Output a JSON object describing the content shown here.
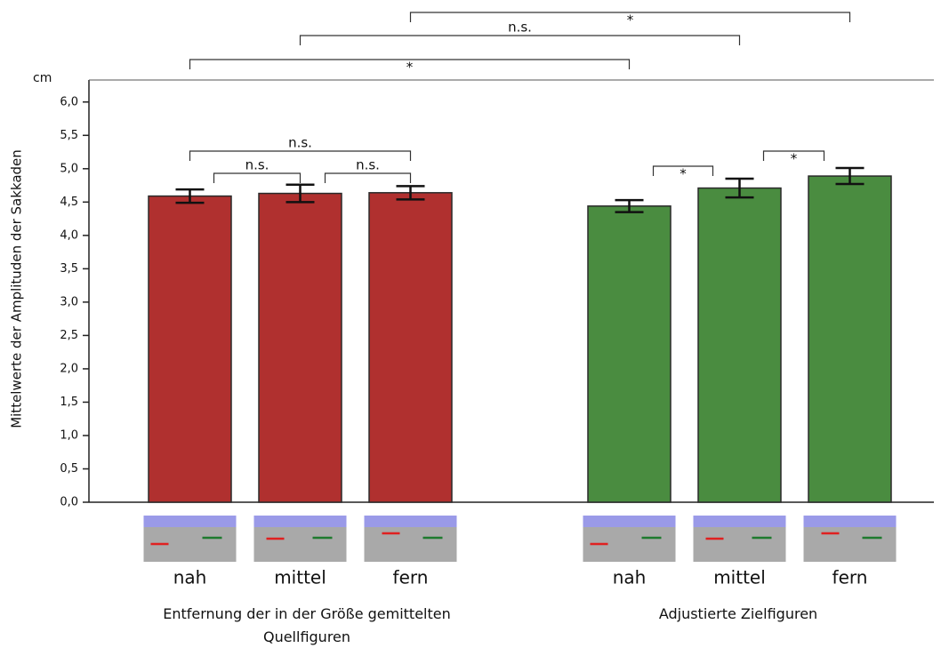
{
  "chart_data": {
    "type": "bar",
    "y_label": "Mittelwerte der Amplituden der Sakkaden",
    "y_unit": "cm",
    "ylim": [
      0,
      6.33
    ],
    "yticks": [
      {
        "value": 0,
        "label": "0,0"
      },
      {
        "value": 0.5,
        "label": "0,5"
      },
      {
        "value": 1,
        "label": "1,0"
      },
      {
        "value": 1.5,
        "label": "1,5"
      },
      {
        "value": 2,
        "label": "2,0"
      },
      {
        "value": 2.5,
        "label": "2,5"
      },
      {
        "value": 3,
        "label": "3,0"
      },
      {
        "value": 3.5,
        "label": "3,5"
      },
      {
        "value": 4,
        "label": "4,0"
      },
      {
        "value": 4.5,
        "label": "4,5"
      },
      {
        "value": 5,
        "label": "5,0"
      },
      {
        "value": 5.5,
        "label": "5,5"
      },
      {
        "value": 6,
        "label": "6,0"
      }
    ],
    "groups": [
      {
        "name": "Entfernung der in der Größe gemittelten Quellfiguren",
        "color": "#b0302f",
        "categories": [
          "nah",
          "mittel",
          "fern"
        ],
        "values": [
          4.59,
          4.63,
          4.64
        ],
        "errors": [
          0.1,
          0.13,
          0.1
        ]
      },
      {
        "name": "Adjustierte Zielfiguren",
        "color": "#4a8c40",
        "categories": [
          "nah",
          "mittel",
          "fern"
        ],
        "values": [
          4.44,
          4.71,
          4.89
        ],
        "errors": [
          0.09,
          0.14,
          0.12
        ]
      }
    ],
    "comparisons": [
      {
        "bars": [
          2,
          5
        ],
        "label": "*"
      },
      {
        "bars": [
          1,
          4
        ],
        "label": "n.s."
      },
      {
        "bars": [
          0,
          3
        ],
        "label": "*"
      },
      {
        "bars": [
          0,
          2
        ],
        "label": "n.s."
      },
      {
        "bars": [
          0,
          1
        ],
        "label": "n.s."
      },
      {
        "bars": [
          1,
          2
        ],
        "label": "n.s."
      },
      {
        "bars": [
          3,
          4
        ],
        "label": "*"
      },
      {
        "bars": [
          4,
          5
        ],
        "label": "*"
      }
    ]
  }
}
